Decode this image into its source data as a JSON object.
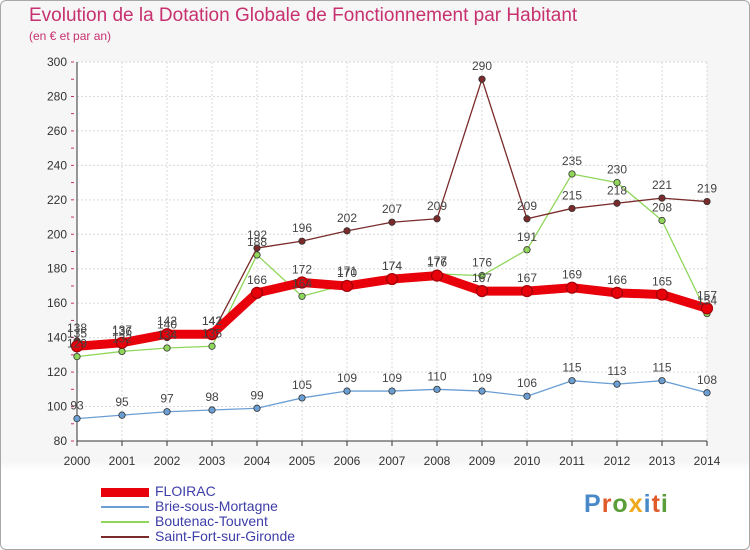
{
  "header": {
    "title": "Evolution de la Dotation Globale de Fonctionnement par Habitant",
    "subtitle": "(en € et par an)"
  },
  "logo": {
    "text": "Proxiti",
    "colors": [
      "#4a89c8",
      "#e05a2a",
      "#5a9e3a",
      "#f0a81c",
      "#4a89c8",
      "#e05a2a",
      "#5a9e3a"
    ]
  },
  "chart_data": {
    "type": "line",
    "x": [
      2000,
      2001,
      2002,
      2003,
      2004,
      2005,
      2006,
      2007,
      2008,
      2009,
      2010,
      2011,
      2012,
      2013,
      2014
    ],
    "ylim": [
      80,
      300
    ],
    "yticks": [
      80,
      100,
      120,
      140,
      160,
      180,
      200,
      220,
      240,
      260,
      280,
      300
    ],
    "grid": true,
    "legend_position": "bottom-left",
    "series": [
      {
        "name": "FLOIRAC",
        "color": "#e8000b",
        "values": [
          135,
          137,
          142,
          142,
          166,
          172,
          170,
          174,
          176,
          167,
          167,
          169,
          166,
          165,
          157
        ]
      },
      {
        "name": "Brie-sous-Mortagne",
        "color": "#6b9fd4",
        "values": [
          93,
          95,
          97,
          98,
          99,
          105,
          109,
          109,
          110,
          109,
          106,
          115,
          113,
          115,
          108
        ]
      },
      {
        "name": "Boutenac-Touvent",
        "color": "#8fd65a",
        "values": [
          129,
          132,
          134,
          135,
          188,
          164,
          171,
          174,
          177,
          176,
          191,
          235,
          230,
          208,
          154
        ]
      },
      {
        "name": "Saint-Fort-sur-Gironde",
        "color": "#7a2a2a",
        "values": [
          138,
          136,
          140,
          142,
          192,
          196,
          202,
          207,
          209,
          290,
          209,
          215,
          218,
          221,
          219
        ]
      }
    ]
  }
}
